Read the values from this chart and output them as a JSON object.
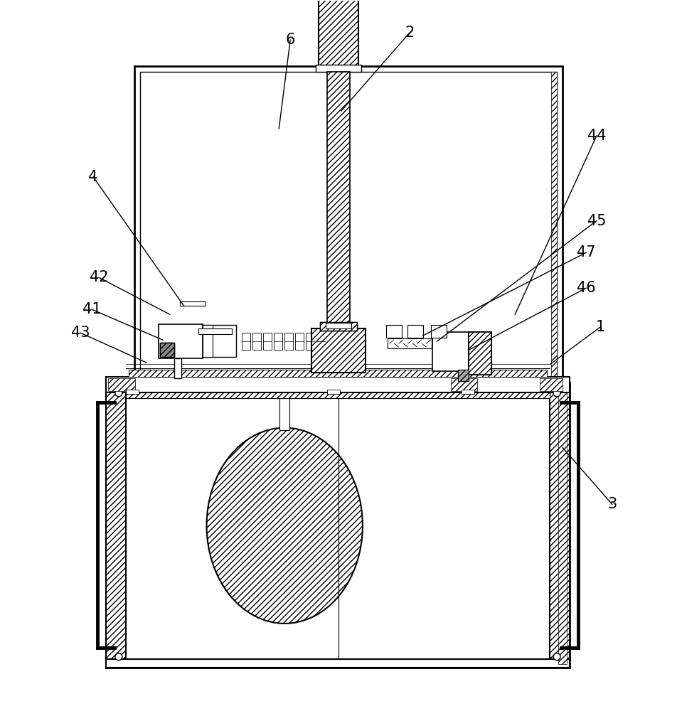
{
  "bg_color": "#ffffff",
  "line_color": "#000000",
  "fig_width": 9.53,
  "fig_height": 10.0,
  "annotations": [
    [
      "2",
      576,
      955,
      480,
      845
    ],
    [
      "44",
      840,
      810,
      725,
      558
    ],
    [
      "45",
      840,
      690,
      615,
      520
    ],
    [
      "47",
      825,
      645,
      595,
      528
    ],
    [
      "46",
      825,
      595,
      660,
      508
    ],
    [
      "1",
      845,
      540,
      775,
      488
    ],
    [
      "3",
      862,
      290,
      792,
      370
    ],
    [
      "4",
      130,
      752,
      258,
      570
    ],
    [
      "42",
      138,
      610,
      238,
      558
    ],
    [
      "41",
      128,
      565,
      228,
      522
    ],
    [
      "43",
      112,
      532,
      205,
      490
    ],
    [
      "6",
      408,
      945,
      392,
      820
    ]
  ]
}
